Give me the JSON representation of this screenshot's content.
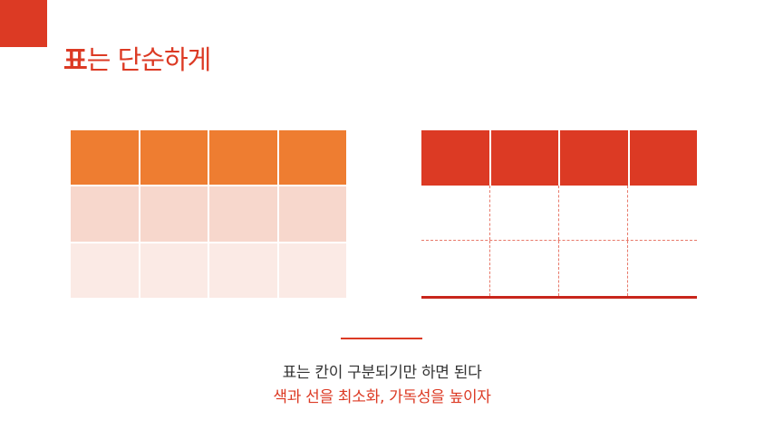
{
  "title": {
    "accent": "표",
    "rest": "는 단순하게"
  },
  "left_table": {
    "rows": 3,
    "columns": 4,
    "row_colors": [
      "#ee7d31",
      "#f7d7cc",
      "#fbeae5"
    ]
  },
  "right_table": {
    "body_rows": 2,
    "columns": 4,
    "header_color": "#dc3a24",
    "line_color": "#c8261c"
  },
  "caption": {
    "line1": "표는 칸이 구분되기만 하면 된다",
    "line2": "색과 선을 최소화, 가독성을 높이자"
  },
  "colors": {
    "accent": "#dc3a24",
    "text": "#333333"
  }
}
